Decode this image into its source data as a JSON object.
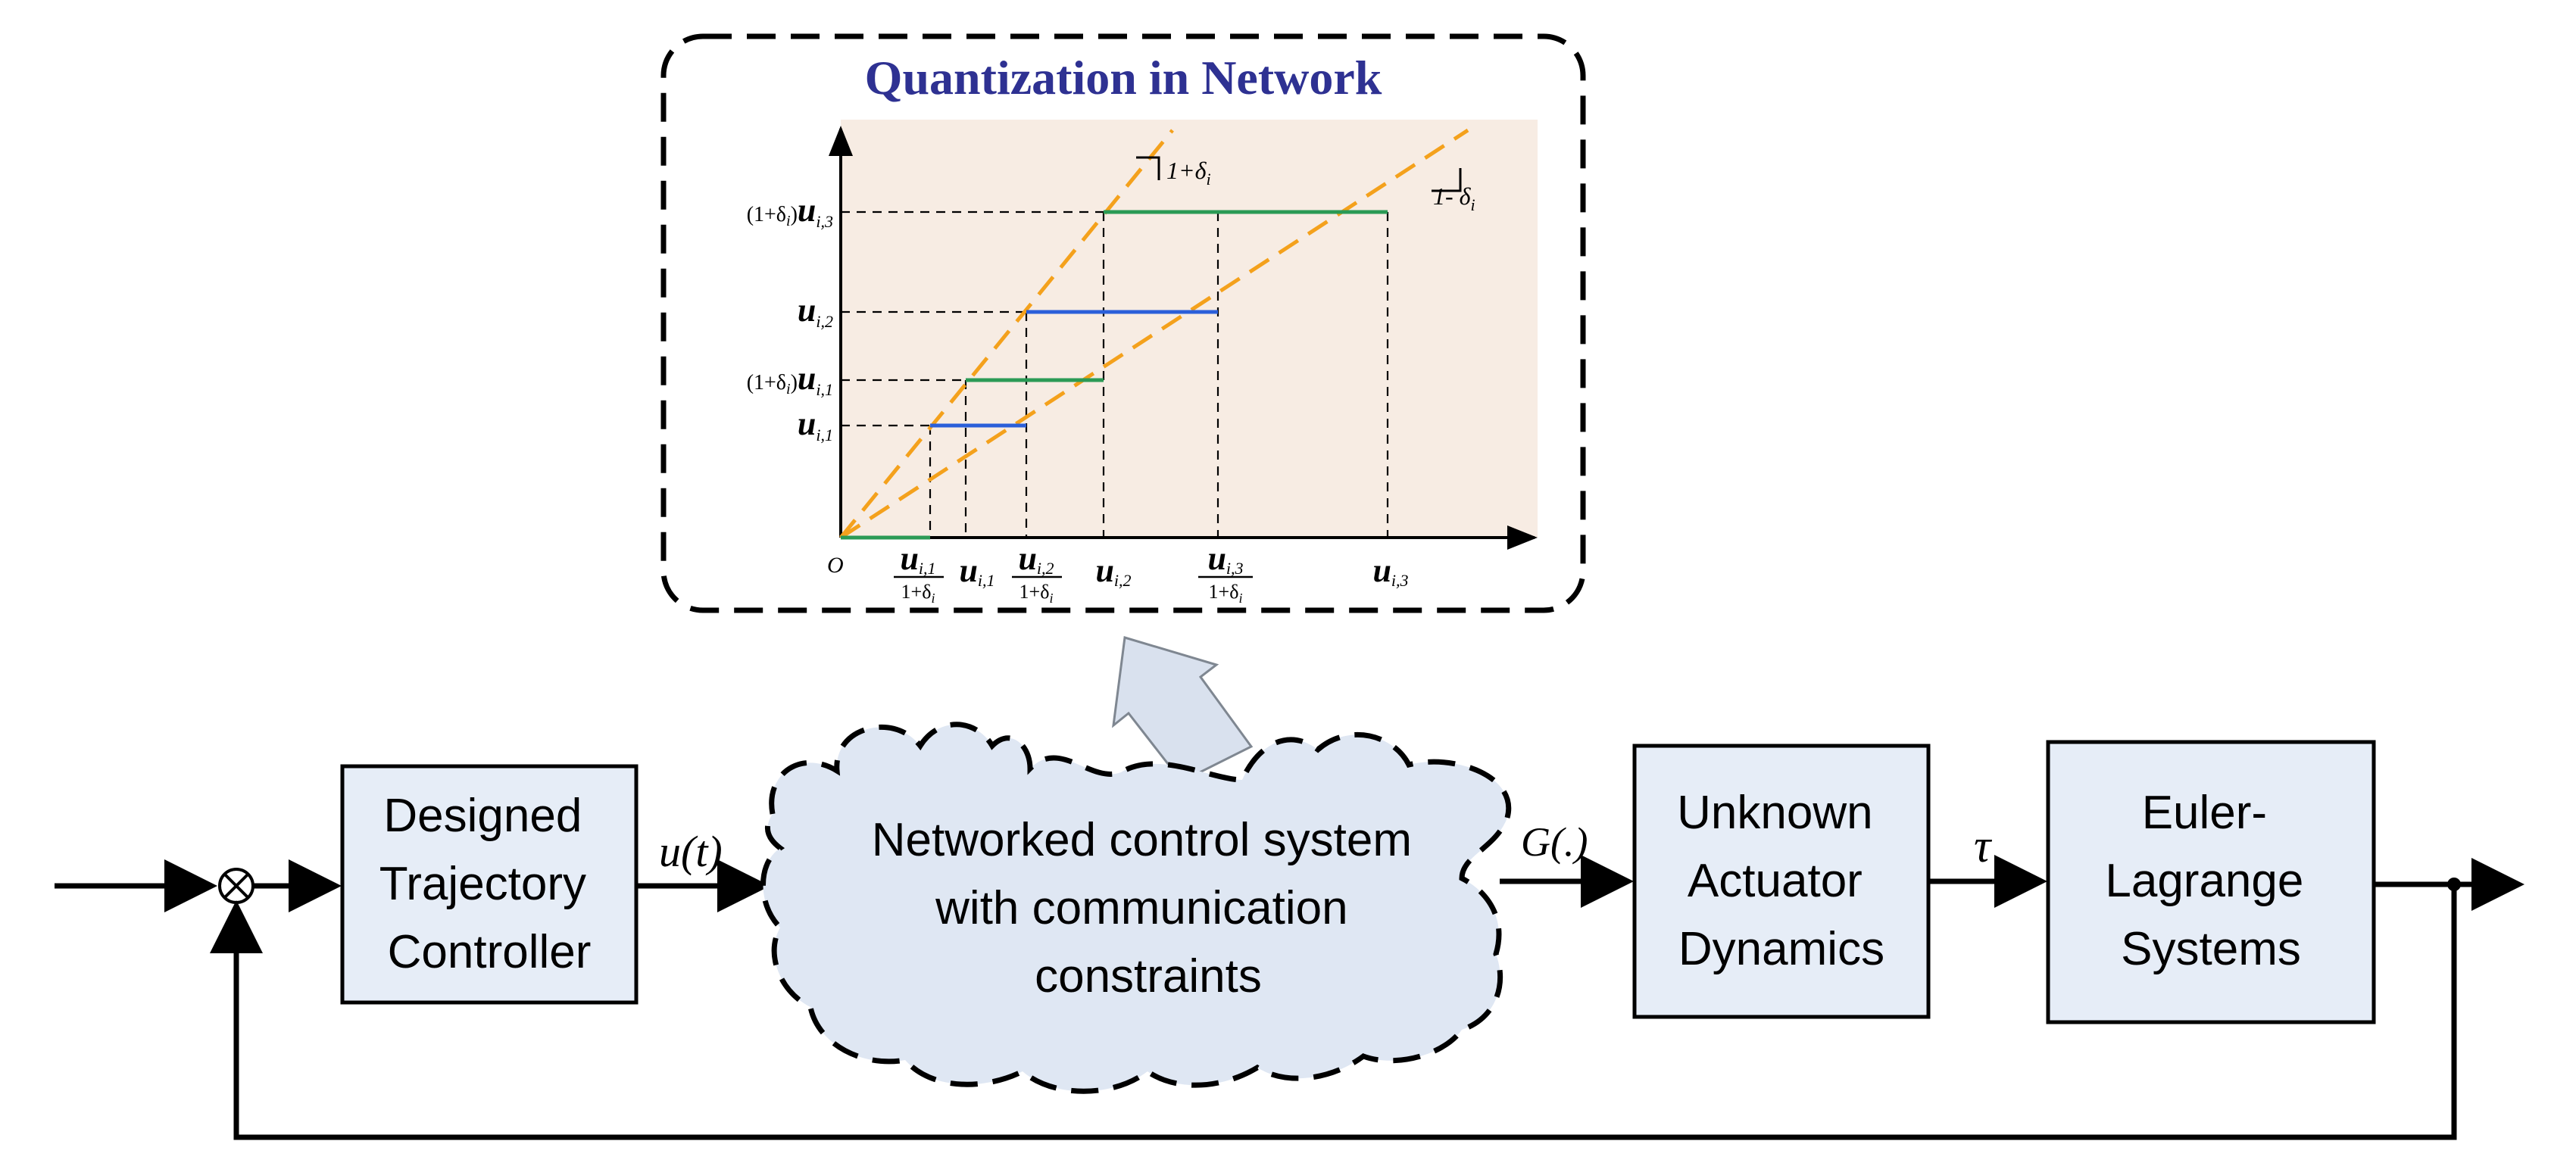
{
  "colors": {
    "box_fill": "#e6edf7",
    "cloud_fill": "#dfe7f3",
    "plot_bg": "#f7ece3",
    "orange": "#f4a11c",
    "green": "#2b9a55",
    "blue": "#2b5fd9",
    "title": "#2e3192",
    "arrow_fill": "#d9e1ee"
  },
  "inset": {
    "title": "Quantization in Network",
    "origin_label": "O",
    "slope_upper": "1+δ",
    "slope_upper_sub": "i",
    "slope_lower": "1- δ",
    "slope_lower_sub": "i",
    "y_labels": [
      {
        "prefix": "(1+δ",
        "prefix_sub": "i",
        "prefix_close": ")",
        "var": "u",
        "sub": "i,3"
      },
      {
        "prefix": "",
        "prefix_sub": "",
        "prefix_close": "",
        "var": "u",
        "sub": "i,2"
      },
      {
        "prefix": "(1+δ",
        "prefix_sub": "i",
        "prefix_close": ")",
        "var": "u",
        "sub": "i,1"
      },
      {
        "prefix": "",
        "prefix_sub": "",
        "prefix_close": "",
        "var": "u",
        "sub": "i,1"
      }
    ],
    "x_labels": [
      {
        "type": "frac",
        "var": "u",
        "sub": "i,1",
        "den": "1+δ",
        "den_sub": "i"
      },
      {
        "type": "plain",
        "var": "u",
        "sub": "i,1"
      },
      {
        "type": "frac",
        "var": "u",
        "sub": "i,2",
        "den": "1+δ",
        "den_sub": "i"
      },
      {
        "type": "plain",
        "var": "u",
        "sub": "i,2"
      },
      {
        "type": "frac",
        "var": "u",
        "sub": "i,3",
        "den": "1+δ",
        "den_sub": "i"
      },
      {
        "type": "plain",
        "var": "u",
        "sub": "i,3"
      }
    ]
  },
  "blocks": {
    "controller": {
      "lines": [
        "Designed",
        "Trajectory",
        "Controller"
      ]
    },
    "network": {
      "lines": [
        "Networked control system",
        "with communication",
        "constraints"
      ]
    },
    "actuator": {
      "lines": [
        "Unknown",
        "Actuator",
        "Dynamics"
      ]
    },
    "plant": {
      "lines": [
        "Euler-",
        "Lagrange",
        "Systems"
      ]
    }
  },
  "signals": {
    "sum_symbol": "⊗",
    "u_t": "u(t)",
    "g": "G(.)",
    "tau": "τ"
  }
}
